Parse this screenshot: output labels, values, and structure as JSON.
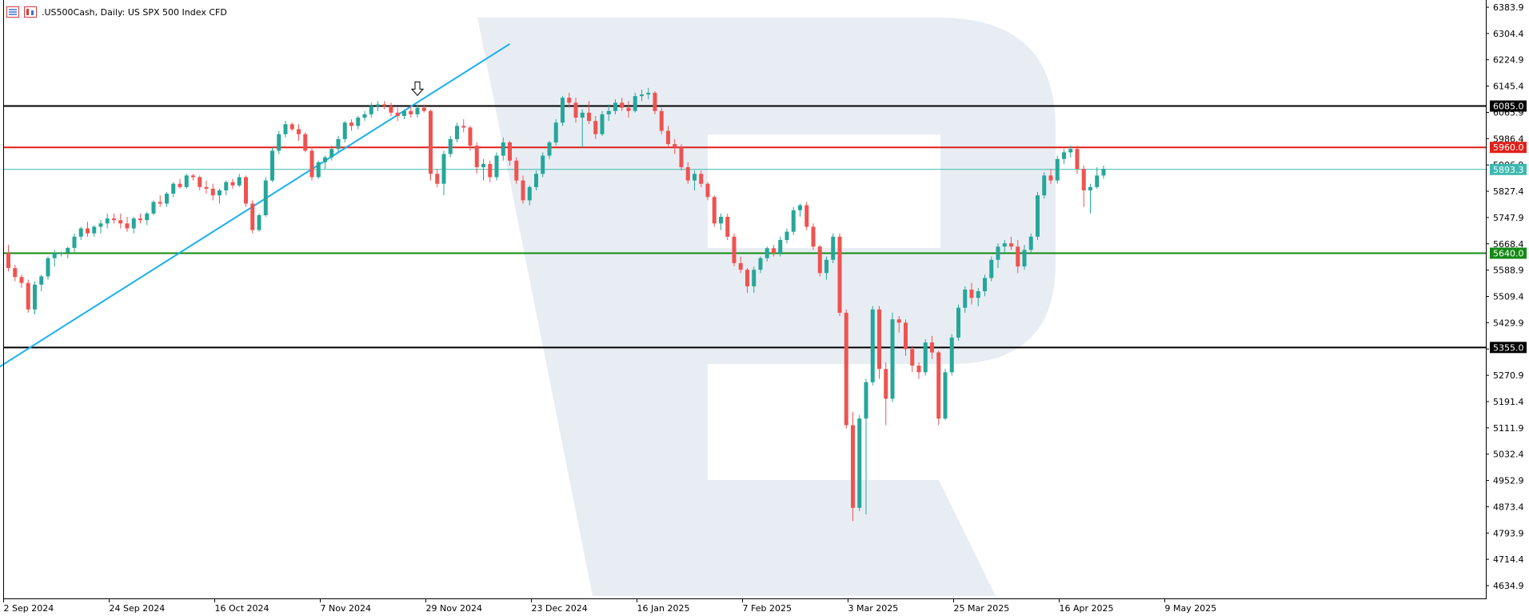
{
  "header": {
    "symbol": ".US500Cash",
    "timeframe": "Daily",
    "description": "US SPX 500 Index CFD",
    "title_text": ".US500Cash, Daily:  US SPX 500 Index CFD"
  },
  "colors": {
    "bull": "#26a69a",
    "bear": "#ef5350",
    "trendline": "#1ab0f0",
    "resistance_black": "#000000",
    "resistance_red": "#e0201b",
    "support_green": "#138a13",
    "current_price": "#3cb9b0",
    "watermark": "#e8edf4"
  },
  "chart_data": {
    "type": "candlestick",
    "title": ".US500Cash, Daily:  US SPX 500 Index CFD",
    "ylim": [
      4560,
      6410
    ],
    "y_ticks": [
      6383.9,
      6304.4,
      6224.9,
      6145.4,
      6065.9,
      5986.4,
      5906.9,
      5827.4,
      5747.9,
      5668.4,
      5588.9,
      5509.4,
      5429.9,
      5350.4,
      5270.9,
      5191.4,
      5111.9,
      5032.4,
      4952.9,
      4873.4,
      4793.9,
      4714.4,
      4634.9
    ],
    "y_tick_labels": [
      "6383.9",
      "6304.4",
      "6224.9",
      "6145.4",
      "6065.9",
      "5986.4",
      "5906.9",
      "5827.4",
      "5747.9",
      "5668.4",
      "5588.9",
      "5509.4",
      "5429.9",
      "5350.4",
      "5270.9",
      "5191.4",
      "5111.9",
      "5032.4",
      "4952.9",
      "4873.4",
      "4793.9",
      "4714.4",
      "4634.9"
    ],
    "x_labels": [
      {
        "index": 0,
        "label": "2 Sep 2024"
      },
      {
        "index": 16,
        "label": "24 Sep 2024"
      },
      {
        "index": 32,
        "label": "16 Oct 2024"
      },
      {
        "index": 48,
        "label": "7 Nov 2024"
      },
      {
        "index": 64,
        "label": "29 Nov 2024"
      },
      {
        "index": 80,
        "label": "23 Dec 2024"
      },
      {
        "index": 96,
        "label": "16 Jan 2025"
      },
      {
        "index": 112,
        "label": "7 Feb 2025"
      },
      {
        "index": 128,
        "label": "3 Mar 2025"
      },
      {
        "index": 144,
        "label": "25 Mar 2025"
      },
      {
        "index": 160,
        "label": "16 Apr 2025"
      },
      {
        "index": 176,
        "label": "9 May 2025"
      }
    ],
    "ohlc": [
      [
        5640,
        5665,
        5585,
        5595
      ],
      [
        5595,
        5605,
        5555,
        5568
      ],
      [
        5568,
        5575,
        5535,
        5550
      ],
      [
        5550,
        5560,
        5460,
        5470
      ],
      [
        5470,
        5555,
        5455,
        5545
      ],
      [
        5545,
        5575,
        5525,
        5570
      ],
      [
        5570,
        5630,
        5560,
        5625
      ],
      [
        5625,
        5650,
        5600,
        5640
      ],
      [
        5640,
        5645,
        5630,
        5642
      ],
      [
        5642,
        5660,
        5625,
        5656
      ],
      [
        5656,
        5700,
        5640,
        5690
      ],
      [
        5690,
        5720,
        5680,
        5715
      ],
      [
        5715,
        5735,
        5690,
        5700
      ],
      [
        5700,
        5725,
        5690,
        5720
      ],
      [
        5720,
        5740,
        5700,
        5730
      ],
      [
        5730,
        5760,
        5715,
        5745
      ],
      [
        5745,
        5760,
        5730,
        5740
      ],
      [
        5740,
        5760,
        5715,
        5730
      ],
      [
        5730,
        5750,
        5705,
        5715
      ],
      [
        5715,
        5750,
        5700,
        5745
      ],
      [
        5745,
        5760,
        5730,
        5740
      ],
      [
        5740,
        5765,
        5725,
        5760
      ],
      [
        5760,
        5800,
        5755,
        5795
      ],
      [
        5795,
        5815,
        5780,
        5790
      ],
      [
        5790,
        5825,
        5780,
        5820
      ],
      [
        5820,
        5855,
        5810,
        5850
      ],
      [
        5850,
        5865,
        5835,
        5840
      ],
      [
        5840,
        5880,
        5835,
        5875
      ],
      [
        5875,
        5880,
        5860,
        5870
      ],
      [
        5870,
        5875,
        5830,
        5840
      ],
      [
        5840,
        5860,
        5820,
        5835
      ],
      [
        5835,
        5850,
        5800,
        5815
      ],
      [
        5815,
        5835,
        5790,
        5830
      ],
      [
        5830,
        5860,
        5815,
        5855
      ],
      [
        5855,
        5865,
        5835,
        5845
      ],
      [
        5845,
        5880,
        5840,
        5870
      ],
      [
        5870,
        5875,
        5780,
        5790
      ],
      [
        5790,
        5800,
        5700,
        5710
      ],
      [
        5710,
        5760,
        5705,
        5755
      ],
      [
        5755,
        5870,
        5750,
        5860
      ],
      [
        5860,
        5960,
        5855,
        5950
      ],
      [
        5950,
        6010,
        5940,
        6000
      ],
      [
        6000,
        6040,
        5990,
        6030
      ],
      [
        6030,
        6035,
        6010,
        6015
      ],
      [
        6015,
        6030,
        5980,
        6000
      ],
      [
        6000,
        6005,
        5945,
        5950
      ],
      [
        5950,
        5960,
        5860,
        5870
      ],
      [
        5870,
        5920,
        5865,
        5915
      ],
      [
        5915,
        5935,
        5895,
        5930
      ],
      [
        5930,
        5965,
        5920,
        5955
      ],
      [
        5955,
        5995,
        5945,
        5985
      ],
      [
        5985,
        6040,
        5975,
        6035
      ],
      [
        6035,
        6045,
        6010,
        6025
      ],
      [
        6025,
        6055,
        6015,
        6050
      ],
      [
        6050,
        6070,
        6040,
        6060
      ],
      [
        6060,
        6095,
        6050,
        6085
      ],
      [
        6085,
        6100,
        6070,
        6090
      ],
      [
        6090,
        6100,
        6075,
        6085
      ],
      [
        6085,
        6095,
        6055,
        6065
      ],
      [
        6065,
        6080,
        6040,
        6055
      ],
      [
        6055,
        6075,
        6045,
        6070
      ],
      [
        6070,
        6085,
        6050,
        6060
      ],
      [
        6060,
        6090,
        6050,
        6080
      ],
      [
        6080,
        6090,
        6065,
        6070
      ],
      [
        6070,
        6075,
        5860,
        5880
      ],
      [
        5880,
        5895,
        5840,
        5850
      ],
      [
        5850,
        5950,
        5815,
        5940
      ],
      [
        5940,
        5995,
        5930,
        5985
      ],
      [
        5985,
        6035,
        5975,
        6025
      ],
      [
        6025,
        6045,
        6005,
        6020
      ],
      [
        6020,
        6025,
        5950,
        5965
      ],
      [
        5965,
        5975,
        5880,
        5900
      ],
      [
        5900,
        5925,
        5860,
        5910
      ],
      [
        5910,
        5920,
        5855,
        5870
      ],
      [
        5870,
        5945,
        5860,
        5935
      ],
      [
        5935,
        5990,
        5920,
        5975
      ],
      [
        5975,
        5980,
        5905,
        5920
      ],
      [
        5920,
        5930,
        5850,
        5860
      ],
      [
        5860,
        5875,
        5790,
        5800
      ],
      [
        5800,
        5845,
        5785,
        5840
      ],
      [
        5840,
        5890,
        5830,
        5880
      ],
      [
        5880,
        5945,
        5870,
        5935
      ],
      [
        5935,
        5980,
        5925,
        5975
      ],
      [
        5975,
        6045,
        5965,
        6035
      ],
      [
        6035,
        6115,
        6025,
        6110
      ],
      [
        6110,
        6125,
        6080,
        6095
      ],
      [
        6095,
        6110,
        6035,
        6050
      ],
      [
        6050,
        6075,
        5960,
        6065
      ],
      [
        6065,
        6100,
        6030,
        6040
      ],
      [
        6040,
        6055,
        5985,
        6000
      ],
      [
        6000,
        6070,
        5995,
        6060
      ],
      [
        6060,
        6090,
        6040,
        6070
      ],
      [
        6070,
        6105,
        6060,
        6095
      ],
      [
        6095,
        6110,
        6070,
        6080
      ],
      [
        6080,
        6100,
        6050,
        6070
      ],
      [
        6070,
        6125,
        6065,
        6115
      ],
      [
        6115,
        6135,
        6100,
        6120
      ],
      [
        6120,
        6140,
        6105,
        6125
      ],
      [
        6125,
        6130,
        6060,
        6070
      ],
      [
        6070,
        6080,
        6000,
        6010
      ],
      [
        6010,
        6025,
        5960,
        5970
      ],
      [
        5970,
        5985,
        5940,
        5960
      ],
      [
        5960,
        5970,
        5890,
        5900
      ],
      [
        5900,
        5915,
        5850,
        5860
      ],
      [
        5860,
        5890,
        5830,
        5880
      ],
      [
        5880,
        5890,
        5840,
        5850
      ],
      [
        5850,
        5855,
        5800,
        5810
      ],
      [
        5810,
        5815,
        5720,
        5730
      ],
      [
        5730,
        5760,
        5710,
        5750
      ],
      [
        5750,
        5760,
        5680,
        5690
      ],
      [
        5690,
        5700,
        5600,
        5610
      ],
      [
        5610,
        5630,
        5580,
        5590
      ],
      [
        5590,
        5595,
        5520,
        5540
      ],
      [
        5540,
        5600,
        5520,
        5590
      ],
      [
        5590,
        5630,
        5580,
        5625
      ],
      [
        5625,
        5660,
        5615,
        5655
      ],
      [
        5655,
        5665,
        5630,
        5640
      ],
      [
        5640,
        5690,
        5630,
        5680
      ],
      [
        5680,
        5715,
        5670,
        5705
      ],
      [
        5705,
        5780,
        5695,
        5770
      ],
      [
        5770,
        5790,
        5750,
        5785
      ],
      [
        5785,
        5795,
        5710,
        5720
      ],
      [
        5720,
        5730,
        5650,
        5660
      ],
      [
        5660,
        5665,
        5570,
        5580
      ],
      [
        5580,
        5630,
        5560,
        5620
      ],
      [
        5620,
        5700,
        5610,
        5690
      ],
      [
        5690,
        5700,
        5450,
        5460
      ],
      [
        5460,
        5470,
        5110,
        5120
      ],
      [
        5120,
        5160,
        4830,
        4870
      ],
      [
        4870,
        5150,
        4860,
        5140
      ],
      [
        5140,
        5260,
        4850,
        5250
      ],
      [
        5250,
        5480,
        5240,
        5470
      ],
      [
        5470,
        5480,
        5260,
        5290
      ],
      [
        5290,
        5310,
        5120,
        5200
      ],
      [
        5200,
        5460,
        5190,
        5440
      ],
      [
        5440,
        5450,
        5400,
        5430
      ],
      [
        5430,
        5440,
        5330,
        5350
      ],
      [
        5350,
        5360,
        5280,
        5300
      ],
      [
        5300,
        5310,
        5260,
        5280
      ],
      [
        5280,
        5380,
        5270,
        5370
      ],
      [
        5370,
        5390,
        5320,
        5340
      ],
      [
        5340,
        5345,
        5120,
        5140
      ],
      [
        5140,
        5290,
        5135,
        5280
      ],
      [
        5280,
        5395,
        5270,
        5385
      ],
      [
        5385,
        5485,
        5375,
        5475
      ],
      [
        5475,
        5540,
        5460,
        5530
      ],
      [
        5530,
        5550,
        5485,
        5505
      ],
      [
        5505,
        5535,
        5480,
        5525
      ],
      [
        5525,
        5575,
        5510,
        5565
      ],
      [
        5565,
        5630,
        5555,
        5620
      ],
      [
        5620,
        5670,
        5595,
        5660
      ],
      [
        5660,
        5680,
        5640,
        5670
      ],
      [
        5670,
        5690,
        5650,
        5660
      ],
      [
        5660,
        5680,
        5580,
        5600
      ],
      [
        5600,
        5665,
        5590,
        5650
      ],
      [
        5650,
        5700,
        5640,
        5690
      ],
      [
        5690,
        5825,
        5680,
        5815
      ],
      [
        5815,
        5885,
        5805,
        5875
      ],
      [
        5875,
        5895,
        5850,
        5860
      ],
      [
        5860,
        5935,
        5850,
        5925
      ],
      [
        5925,
        5955,
        5910,
        5945
      ],
      [
        5945,
        5965,
        5930,
        5955
      ],
      [
        5955,
        5965,
        5880,
        5895
      ],
      [
        5895,
        5905,
        5780,
        5830
      ],
      [
        5830,
        5850,
        5760,
        5840
      ],
      [
        5840,
        5900,
        5835,
        5875
      ],
      [
        5875,
        5905,
        5865,
        5895
      ]
    ],
    "trendline": {
      "start": {
        "index": -1.3,
        "value": 5297
      },
      "end": {
        "index": 76,
        "value": 6273
      }
    },
    "levels": [
      {
        "name": "resistance",
        "value": 6085.0,
        "label": "6085.0",
        "color": "#000000"
      },
      {
        "name": "resistance",
        "value": 5960.0,
        "label": "5960.0",
        "color": "#e0201b"
      },
      {
        "name": "current price",
        "value": 5893.3,
        "label": "5893.3",
        "color": "#3cb9b0"
      },
      {
        "name": "support",
        "value": 5640.0,
        "label": "5640.0",
        "color": "#138a13"
      },
      {
        "name": "support",
        "value": 5355.0,
        "label": "5355.0",
        "color": "#000000"
      }
    ],
    "annotations": [
      {
        "type": "arrow-down",
        "index": 62,
        "value": 6100
      }
    ]
  }
}
